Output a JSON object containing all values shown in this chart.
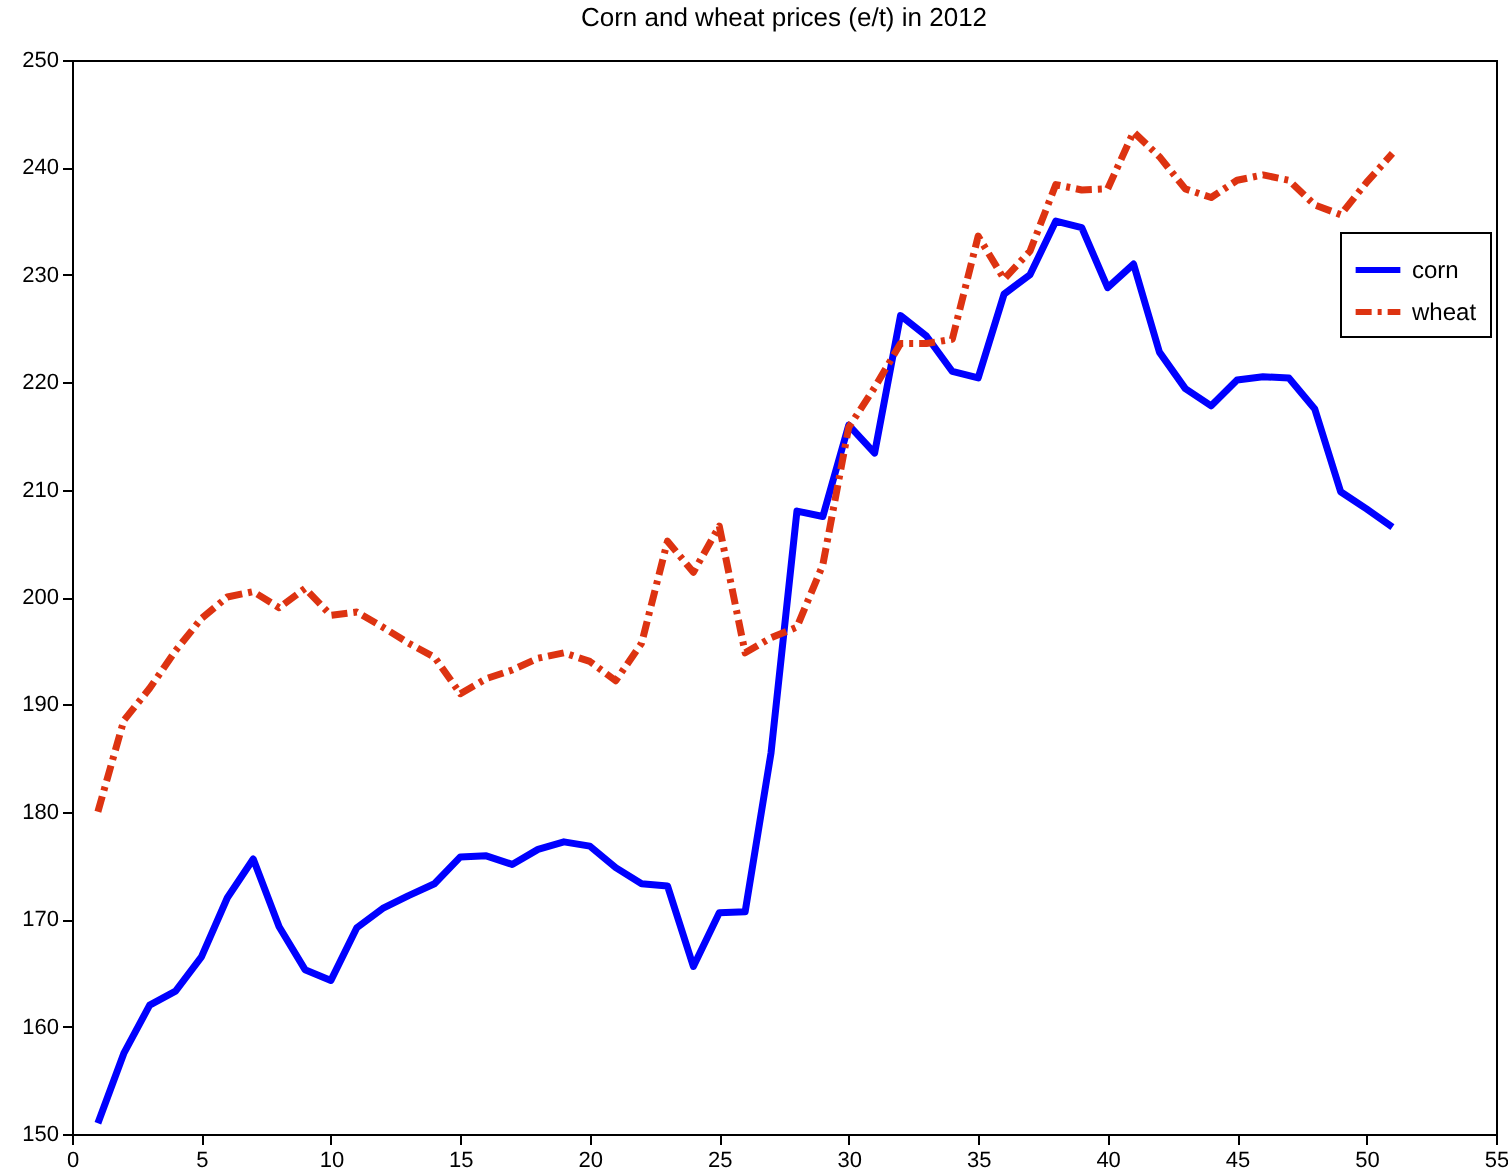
{
  "chart_data": {
    "type": "line",
    "title": "Corn and wheat prices (e/t) in 2012",
    "x": [
      1,
      2,
      3,
      4,
      5,
      6,
      7,
      8,
      9,
      10,
      11,
      12,
      13,
      14,
      15,
      16,
      17,
      18,
      19,
      20,
      21,
      22,
      23,
      24,
      25,
      26,
      27,
      28,
      29,
      30,
      31,
      32,
      33,
      34,
      35,
      36,
      37,
      38,
      39,
      40,
      41,
      42,
      43,
      44,
      45,
      46,
      47,
      48,
      49,
      50,
      51
    ],
    "series": [
      {
        "name": "corn",
        "color": "#0000ff",
        "line_style": "solid",
        "values": [
          151,
          157.5,
          162,
          163.3,
          166.5,
          172,
          175.6,
          169.3,
          165.3,
          164.3,
          169.2,
          171,
          172.2,
          173.3,
          175.8,
          175.9,
          175.1,
          176.5,
          177.2,
          176.8,
          174.8,
          173.3,
          173.1,
          165.6,
          170.6,
          170.7,
          185.5,
          208,
          207.5,
          216,
          213.4,
          226.2,
          224.3,
          221,
          220.4,
          228.2,
          230,
          235,
          234.4,
          228.8,
          231,
          222.8,
          219.4,
          217.8,
          220.2,
          220.5,
          220.4,
          217.5,
          209.8,
          208.2,
          206.5
        ]
      },
      {
        "name": "wheat",
        "color": "#dd3311",
        "line_style": "dashed",
        "values": [
          180,
          188.5,
          191.5,
          195,
          198,
          200,
          200.5,
          199,
          200.8,
          198.3,
          198.6,
          197.2,
          195.7,
          194.4,
          191,
          192.4,
          193.2,
          194.3,
          194.8,
          194,
          192.2,
          195.7,
          205.2,
          202.3,
          206.6,
          194.8,
          196.2,
          197.2,
          203,
          215.8,
          219.5,
          223.6,
          223.6,
          224,
          233.6,
          229.6,
          232.2,
          238.4,
          237.9,
          238,
          243.3,
          241,
          238,
          237.2,
          238.8,
          239.3,
          238.8,
          236.5,
          235.6,
          238.6,
          241.3
        ]
      }
    ],
    "xlim": [
      0,
      55
    ],
    "xticks": [
      0,
      5,
      10,
      15,
      20,
      25,
      30,
      35,
      40,
      45,
      50,
      55
    ],
    "ylim": [
      150,
      250
    ],
    "yticks": [
      150,
      160,
      170,
      180,
      190,
      200,
      210,
      220,
      230,
      240,
      250
    ],
    "legend": "top right",
    "grid": false
  }
}
